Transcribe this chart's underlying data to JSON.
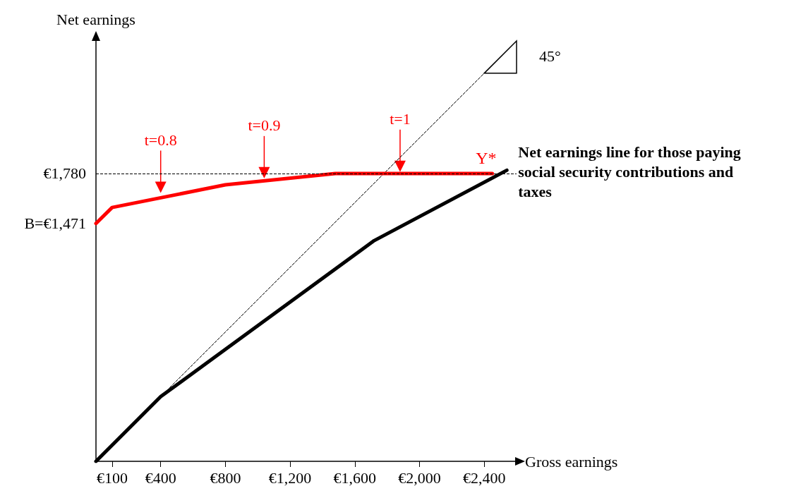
{
  "chart_data": {
    "type": "line",
    "xlabel": "Gross earnings",
    "ylabel": "Net earnings",
    "xlim": [
      0,
      2600
    ],
    "ylim": [
      0,
      2600
    ],
    "xticks": [
      {
        "value": 100,
        "label": "€100"
      },
      {
        "value": 400,
        "label": "€400"
      },
      {
        "value": 800,
        "label": "€800"
      },
      {
        "value": 1200,
        "label": "€1,200"
      },
      {
        "value": 1600,
        "label": "€1,600"
      },
      {
        "value": 2000,
        "label": "€2,000"
      },
      {
        "value": 2400,
        "label": "€2,400"
      }
    ],
    "yticks": [
      {
        "value": 1471,
        "label": "B=€1,471"
      },
      {
        "value": 1780,
        "label": "€1,780"
      }
    ],
    "series": [
      {
        "name": "Y*",
        "color": "#ff0000",
        "x": [
          0,
          100,
          800,
          1480,
          2450
        ],
        "values": [
          1471,
          1570,
          1710,
          1780,
          1780
        ]
      },
      {
        "name": "Net earnings line for those paying social security contributions and taxes",
        "color": "#000000",
        "x": [
          0,
          400,
          1720,
          2540
        ],
        "values": [
          0,
          400,
          1365,
          1800
        ]
      },
      {
        "color": "#000000",
        "line_style": "dashed",
        "x": [
          400,
          2600
        ],
        "values": [
          400,
          2600
        ]
      }
    ],
    "ref_lines": [
      {
        "axis": "y",
        "value": 1780,
        "line_style": "dashed",
        "color": "#000000"
      }
    ],
    "annotations": [
      {
        "text": "t=0.8",
        "x": 400,
        "y": 1660
      },
      {
        "text": "t=0.9",
        "x": 1040,
        "y": 1750
      },
      {
        "text": "t=1",
        "x": 1880,
        "y": 1790
      },
      "45°"
    ],
    "grid": false,
    "legend": false,
    "marker": "none",
    "line_style": "solid"
  }
}
